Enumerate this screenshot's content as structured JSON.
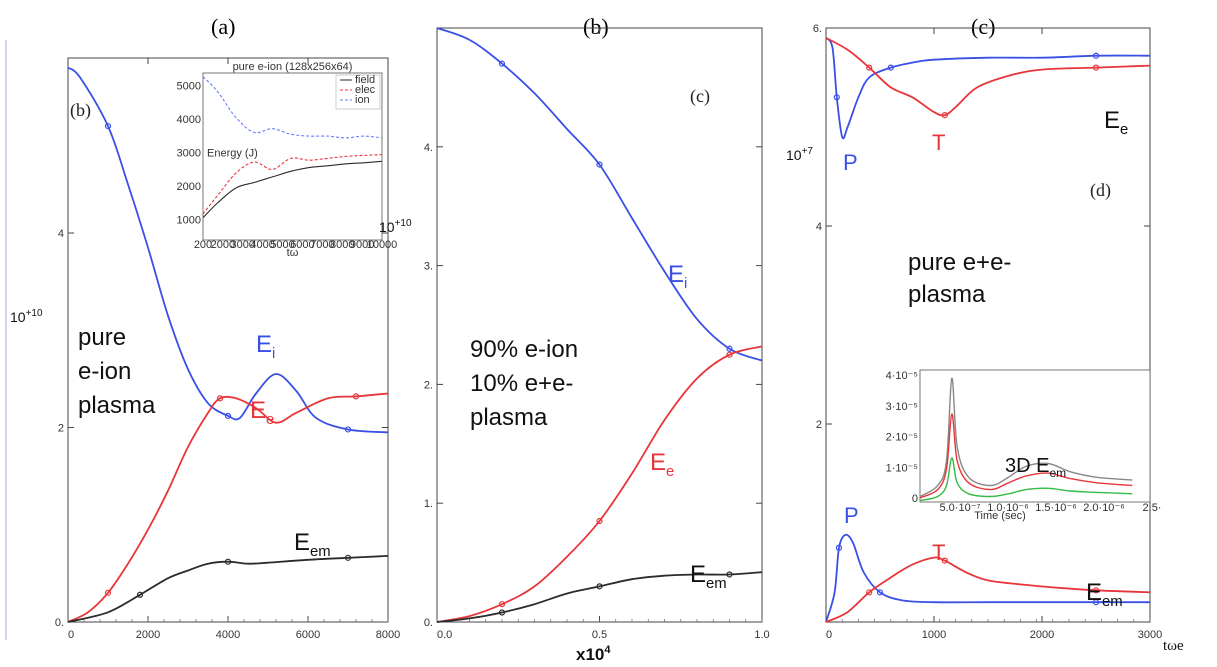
{
  "captions": [
    "(a)",
    "(b)",
    "(c)"
  ],
  "colors": {
    "blue": "#3a4fe6",
    "red": "#e8353a",
    "black": "#2b2b2b",
    "green": "#33bb44",
    "grey": "#888888"
  },
  "chart_data": [
    {
      "type": "line",
      "panel_tag": "(b)",
      "ylabel": "10+10",
      "ylabel_base": "10",
      "ylabel_exp": "+10",
      "annotation": [
        "pure",
        "e-ion",
        "plasma"
      ],
      "xlim": [
        0,
        8000
      ],
      "ylim": [
        0,
        5.8
      ],
      "xticks": [
        "0",
        "2000",
        "4000",
        "6000",
        "8000"
      ],
      "xtick_values": [
        0,
        2000,
        4000,
        6000,
        8000
      ],
      "yticks": [
        "0.",
        "2",
        "4"
      ],
      "ytick_values": [
        0,
        2,
        4
      ],
      "series": [
        {
          "name": "Ei",
          "label_main": "E",
          "label_sub": "i",
          "color": "#3a4fe6",
          "x": [
            0,
            300,
            1000,
            1500,
            2000,
            2500,
            3000,
            3500,
            4000,
            4300,
            4700,
            5200,
            5700,
            6200,
            7000,
            8000
          ],
          "y": [
            5.7,
            5.6,
            5.1,
            4.5,
            3.85,
            3.15,
            2.6,
            2.25,
            2.12,
            2.1,
            2.35,
            2.55,
            2.38,
            2.1,
            1.98,
            1.95
          ]
        },
        {
          "name": "Ee",
          "label_main": "E",
          "label_sub": "e",
          "color": "#e8353a",
          "x": [
            0,
            500,
            1000,
            1500,
            2000,
            2500,
            3000,
            3500,
            3800,
            4200,
            4700,
            5200,
            5700,
            6500,
            7200,
            8000
          ],
          "y": [
            0,
            0.1,
            0.3,
            0.6,
            0.95,
            1.35,
            1.8,
            2.15,
            2.3,
            2.3,
            2.2,
            2.05,
            2.15,
            2.3,
            2.32,
            2.35
          ]
        },
        {
          "name": "Eem",
          "label_main": "E",
          "label_sub": "em",
          "color": "#2b2b2b",
          "x": [
            0,
            1000,
            1800,
            2500,
            3000,
            3500,
            4000,
            4500,
            5000,
            6000,
            7000,
            8000
          ],
          "y": [
            0,
            0.1,
            0.28,
            0.45,
            0.53,
            0.6,
            0.62,
            0.6,
            0.61,
            0.64,
            0.66,
            0.68
          ]
        }
      ],
      "inset": {
        "title": "pure e-ion (128x256x64)",
        "xlabel": "tω",
        "ylabel": "Energy (J)",
        "xticks": [
          "200",
          "2000",
          "3000",
          "4000",
          "5000",
          "6000",
          "7000",
          "8000",
          "9000",
          "10000"
        ],
        "yticks": [
          "1000",
          "2000",
          "3000",
          "4000",
          "5000"
        ],
        "legend": [
          "field",
          "elec",
          "ion"
        ],
        "series": [
          {
            "name": "field",
            "color": "#2b2b2b",
            "dash": "",
            "x": [
              200,
              1000,
              2000,
              3000,
              4000,
              5000,
              6000,
              7000,
              8000,
              9000,
              10000
            ],
            "y": [
              1100,
              1500,
              1900,
              2050,
              2200,
              2350,
              2450,
              2500,
              2550,
              2580,
              2620
            ]
          },
          {
            "name": "elec",
            "color": "#e8353a",
            "dash": "3,2",
            "x": [
              200,
              1000,
              2000,
              3000,
              4000,
              5000,
              6000,
              7000,
              8000,
              9000,
              10000
            ],
            "y": [
              1200,
              1700,
              2300,
              2600,
              2400,
              2700,
              2650,
              2700,
              2750,
              2780,
              2800
            ]
          },
          {
            "name": "ion",
            "color": "#6b7dff",
            "dash": "3,2",
            "x": [
              200,
              1000,
              2000,
              3000,
              4000,
              5000,
              6000,
              7000,
              8000,
              9000,
              10000
            ],
            "y": [
              4900,
              4500,
              3800,
              3400,
              3500,
              3350,
              3300,
              3300,
              3250,
              3300,
              3250
            ]
          }
        ]
      }
    },
    {
      "type": "line",
      "panel_tag": "(c)",
      "ylabel": "10+10",
      "ylabel_base": "10",
      "ylabel_exp": "+10",
      "annotation": [
        "90% e-ion",
        "10% e+e-",
        "plasma"
      ],
      "xlabel": "x10",
      "xlabel_exp": "4",
      "xlim": [
        0,
        1.0
      ],
      "ylim": [
        0,
        5.0
      ],
      "xticks": [
        "0.0",
        "0.5",
        "1.0"
      ],
      "xtick_values": [
        0,
        0.5,
        1.0
      ],
      "yticks": [
        "0.",
        "1.",
        "2.",
        "3.",
        "4."
      ],
      "ytick_values": [
        0,
        1,
        2,
        3,
        4
      ],
      "series": [
        {
          "name": "Ei",
          "label_main": "E",
          "label_sub": "i",
          "color": "#3a4fe6",
          "x": [
            0,
            0.1,
            0.2,
            0.3,
            0.4,
            0.5,
            0.6,
            0.7,
            0.8,
            0.9,
            1.0
          ],
          "y": [
            5.0,
            4.9,
            4.7,
            4.45,
            4.15,
            3.85,
            3.4,
            2.95,
            2.55,
            2.3,
            2.2
          ]
        },
        {
          "name": "Ee",
          "label_main": "E",
          "label_sub": "e",
          "color": "#e8353a",
          "x": [
            0,
            0.1,
            0.2,
            0.3,
            0.4,
            0.5,
            0.6,
            0.7,
            0.8,
            0.9,
            1.0
          ],
          "y": [
            0,
            0.05,
            0.15,
            0.3,
            0.55,
            0.85,
            1.25,
            1.7,
            2.05,
            2.25,
            2.32
          ]
        },
        {
          "name": "Eem",
          "label_main": "E",
          "label_sub": "em",
          "color": "#2b2b2b",
          "x": [
            0,
            0.1,
            0.2,
            0.3,
            0.4,
            0.5,
            0.6,
            0.7,
            0.8,
            0.9,
            1.0
          ],
          "y": [
            0,
            0.03,
            0.08,
            0.15,
            0.24,
            0.3,
            0.36,
            0.39,
            0.4,
            0.4,
            0.42
          ]
        }
      ]
    },
    {
      "type": "line",
      "panel_tag": "(d)",
      "ylabel": "10+7",
      "ylabel_base": "10",
      "ylabel_exp": "+7",
      "annotation": [
        "pure e+e-",
        "plasma"
      ],
      "xlabel": "tωe",
      "xlim": [
        0,
        3000
      ],
      "ylim": [
        0,
        6.0
      ],
      "xticks": [
        "0",
        "1000",
        "2000",
        "3000"
      ],
      "xtick_values": [
        0,
        1000,
        2000,
        3000
      ],
      "yticks": [
        "2",
        "4",
        "6."
      ],
      "ytick_values": [
        2,
        4,
        6
      ],
      "series": [
        {
          "name": "Ee-P",
          "label_main": "P",
          "color": "#3a4fe6",
          "x": [
            0,
            60,
            100,
            150,
            200,
            300,
            400,
            600,
            800,
            1000,
            1500,
            2000,
            2500,
            3000
          ],
          "y": [
            5.9,
            5.8,
            5.3,
            4.9,
            5.0,
            5.3,
            5.5,
            5.6,
            5.65,
            5.68,
            5.7,
            5.7,
            5.72,
            5.72
          ]
        },
        {
          "name": "Ee-T",
          "label_main": "T",
          "color": "#e8353a",
          "x": [
            0,
            200,
            400,
            600,
            800,
            1000,
            1100,
            1200,
            1400,
            1700,
            2000,
            2500,
            3000
          ],
          "y": [
            5.9,
            5.78,
            5.6,
            5.4,
            5.3,
            5.15,
            5.12,
            5.2,
            5.4,
            5.52,
            5.58,
            5.6,
            5.62
          ]
        },
        {
          "name": "Eem-P",
          "label_main": "P",
          "color": "#3a4fe6",
          "x": [
            0,
            80,
            120,
            180,
            250,
            350,
            500,
            700,
            1000,
            1500,
            2000,
            2500,
            3000
          ],
          "y": [
            0,
            0.3,
            0.75,
            0.88,
            0.8,
            0.5,
            0.3,
            0.22,
            0.2,
            0.2,
            0.2,
            0.2,
            0.2
          ]
        },
        {
          "name": "Eem-T",
          "label_main": "T",
          "color": "#e8353a",
          "x": [
            0,
            200,
            400,
            600,
            800,
            1000,
            1100,
            1300,
            1500,
            1800,
            2100,
            2500,
            3000
          ],
          "y": [
            0,
            0.1,
            0.3,
            0.45,
            0.58,
            0.65,
            0.62,
            0.5,
            0.42,
            0.38,
            0.35,
            0.32,
            0.3
          ]
        }
      ],
      "labels": {
        "Ee_main": "E",
        "Ee_sub": "e",
        "Eem_main": "E",
        "Eem_sub": "em"
      },
      "inset": {
        "title": "3D E",
        "title_sub": "em",
        "xlabel": "Time (sec)",
        "xticks": [
          "5.0·10⁻⁷",
          "1.0·10⁻⁶",
          "1.5·10⁻⁶",
          "2.0·10⁻⁶",
          "2.5·"
        ],
        "yticks": [
          "0",
          "1·10⁻⁵",
          "2·10⁻⁵",
          "3·10⁻⁵",
          "4·10⁻⁵"
        ],
        "series": [
          {
            "name": "grey",
            "color": "#888888",
            "x": [
              0,
              0.2,
              0.3,
              0.36,
              0.42,
              0.55,
              0.8,
              1.0,
              1.2,
              1.45,
              1.7,
              2.0,
              2.4
            ],
            "y": [
              0.2,
              0.6,
              1.5,
              4.5,
              2.0,
              0.9,
              0.6,
              0.9,
              1.3,
              1.4,
              1.1,
              0.9,
              0.8
            ]
          },
          {
            "name": "red",
            "color": "#e8353a",
            "x": [
              0,
              0.2,
              0.3,
              0.36,
              0.42,
              0.55,
              0.8,
              1.0,
              1.2,
              1.45,
              1.7,
              2.0,
              2.4
            ],
            "y": [
              0.15,
              0.45,
              1.2,
              3.2,
              1.5,
              0.7,
              0.45,
              0.7,
              0.95,
              1.05,
              0.85,
              0.7,
              0.6
            ]
          },
          {
            "name": "green",
            "color": "#33bb44",
            "x": [
              0,
              0.2,
              0.3,
              0.36,
              0.42,
              0.55,
              0.8,
              1.0,
              1.2,
              1.45,
              1.7,
              2.0,
              2.4
            ],
            "y": [
              0.05,
              0.2,
              0.6,
              1.6,
              0.7,
              0.3,
              0.2,
              0.3,
              0.45,
              0.5,
              0.4,
              0.35,
              0.3
            ]
          }
        ]
      }
    }
  ]
}
